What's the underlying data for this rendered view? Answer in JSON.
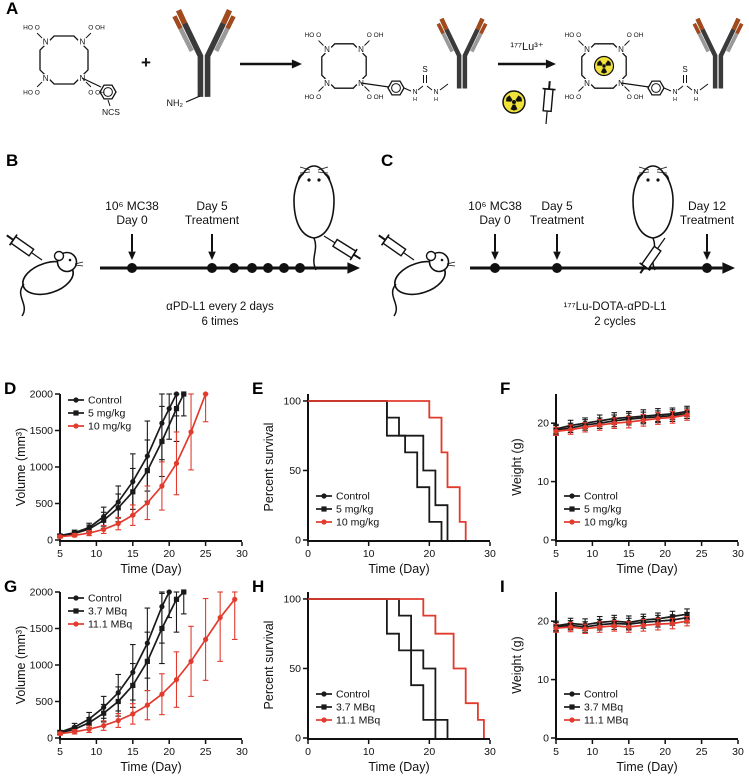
{
  "panels": {
    "A": "A",
    "B": "B",
    "C": "C",
    "D": "D",
    "E": "E",
    "F": "F",
    "G": "G",
    "H": "H",
    "I": "I"
  },
  "colors": {
    "black": "#1a1a1a",
    "red": "#e23b2e",
    "antibody_dark": "#3a3a3a",
    "antibody_tip": "#a04a1e",
    "antibody_light": "#9a9a9a",
    "radioactive_yellow": "#f0e13b"
  },
  "panelA": {
    "plus": "+",
    "nh2": "NH₂",
    "ncs": "NCS",
    "lu_label": "¹⁷⁷Lu³⁺",
    "n_label": "N",
    "arm_labels": [
      "O OH",
      "HO O",
      "HO O",
      "O OH"
    ],
    "linker": {
      "s": "S",
      "n1": "N",
      "n2": "N",
      "h": "H"
    }
  },
  "panelB": {
    "inoc_line1": "10⁶ MC38",
    "inoc_line2": "Day 0",
    "treat_line1": "Day 5",
    "treat_line2": "Treatment",
    "caption_line1": "αPD-L1 every 2 days",
    "caption_line2": "6 times"
  },
  "panelC": {
    "inoc_line1": "10⁶ MC38",
    "inoc_line2": "Day 0",
    "treat1_line1": "Day 5",
    "treat1_line2": "Treatment",
    "treat2_line1": "Day 12",
    "treat2_line2": "Treatment",
    "caption_line1": "¹⁷⁷Lu-DOTA-αPD-L1",
    "caption_line2": "2 cycles"
  },
  "chart_data": [
    {
      "panel": "D",
      "type": "line",
      "title": "",
      "xlabel": "Time (Day)",
      "ylabel": "Volume (mm³)",
      "xlim": [
        5,
        30
      ],
      "ylim": [
        0,
        2000
      ],
      "xticks": [
        5,
        10,
        15,
        20,
        25,
        30
      ],
      "yticks": [
        0,
        500,
        1000,
        1500,
        2000
      ],
      "legend_pos": "top-left",
      "series": [
        {
          "name": "Control",
          "color": "#1a1a1a",
          "marker": "circle",
          "x": [
            5,
            7,
            9,
            11,
            13,
            15,
            17,
            19,
            20,
            21
          ],
          "y": [
            60,
            100,
            170,
            320,
            520,
            800,
            1150,
            1600,
            1800,
            2000
          ],
          "err": [
            20,
            35,
            60,
            130,
            220,
            380,
            480,
            500,
            420,
            300
          ]
        },
        {
          "name": "5 mg/kg",
          "color": "#1a1a1a",
          "marker": "square",
          "x": [
            5,
            7,
            9,
            11,
            13,
            15,
            17,
            19,
            21,
            22
          ],
          "y": [
            55,
            90,
            150,
            270,
            440,
            660,
            950,
            1350,
            1800,
            2000
          ],
          "err": [
            18,
            30,
            55,
            110,
            190,
            320,
            420,
            480,
            450,
            300
          ]
        },
        {
          "name": "10 mg/kg",
          "color": "#e23b2e",
          "marker": "circle",
          "x": [
            5,
            7,
            9,
            11,
            13,
            15,
            17,
            19,
            21,
            23,
            25
          ],
          "y": [
            45,
            65,
            95,
            145,
            225,
            340,
            510,
            740,
            1050,
            1480,
            2000
          ],
          "err": [
            15,
            22,
            35,
            55,
            85,
            140,
            230,
            330,
            430,
            520,
            380
          ]
        }
      ]
    },
    {
      "panel": "E",
      "type": "step",
      "title": "",
      "xlabel": "Time (Day)",
      "ylabel": "Percent survival",
      "xlim": [
        0,
        30
      ],
      "ylim": [
        0,
        105
      ],
      "xticks": [
        0,
        10,
        20,
        30
      ],
      "yticks": [
        0,
        50,
        100
      ],
      "legend_pos": "bottom-left",
      "series": [
        {
          "name": "Control",
          "color": "#1a1a1a",
          "marker": "circle",
          "points": [
            [
              0,
              100
            ],
            [
              13,
              100
            ],
            [
              13,
              75
            ],
            [
              16,
              75
            ],
            [
              16,
              63
            ],
            [
              18,
              63
            ],
            [
              18,
              38
            ],
            [
              20,
              38
            ],
            [
              20,
              13
            ],
            [
              22,
              13
            ],
            [
              22,
              0
            ]
          ]
        },
        {
          "name": "5 mg/kg",
          "color": "#1a1a1a",
          "marker": "square",
          "points": [
            [
              0,
              100
            ],
            [
              13,
              100
            ],
            [
              13,
              88
            ],
            [
              15,
              88
            ],
            [
              15,
              75
            ],
            [
              19,
              75
            ],
            [
              19,
              50
            ],
            [
              21,
              50
            ],
            [
              21,
              25
            ],
            [
              23,
              25
            ],
            [
              23,
              0
            ]
          ]
        },
        {
          "name": "10 mg/kg",
          "color": "#e23b2e",
          "marker": "circle",
          "points": [
            [
              0,
              100
            ],
            [
              20,
              100
            ],
            [
              20,
              88
            ],
            [
              22,
              88
            ],
            [
              22,
              63
            ],
            [
              23,
              63
            ],
            [
              23,
              38
            ],
            [
              25,
              38
            ],
            [
              25,
              13
            ],
            [
              26,
              13
            ],
            [
              26,
              0
            ]
          ]
        }
      ]
    },
    {
      "panel": "F",
      "type": "line",
      "title": "",
      "xlabel": "Time (Day)",
      "ylabel": "Weight (g)",
      "xlim": [
        5,
        30
      ],
      "ylim": [
        0,
        25
      ],
      "xticks": [
        5,
        10,
        15,
        20,
        25,
        30
      ],
      "yticks": [
        0,
        10,
        20
      ],
      "legend_pos": "bottom-left",
      "series": [
        {
          "name": "Control",
          "color": "#1a1a1a",
          "marker": "circle",
          "x": [
            5,
            7,
            9,
            11,
            13,
            15,
            17,
            19,
            21,
            23
          ],
          "y": [
            19,
            19.6,
            20,
            20.4,
            20.8,
            21,
            21.2,
            21.4,
            21.6,
            22
          ],
          "err": [
            0.8,
            0.9,
            0.9,
            1,
            1,
            1,
            1.1,
            1.1,
            1,
            0.9
          ]
        },
        {
          "name": "5 mg/kg",
          "color": "#1a1a1a",
          "marker": "square",
          "x": [
            5,
            7,
            9,
            11,
            13,
            15,
            17,
            19,
            21,
            23
          ],
          "y": [
            18.8,
            19.2,
            19.7,
            20,
            20.4,
            20.7,
            20.9,
            21.1,
            21.3,
            21.7
          ],
          "err": [
            0.8,
            0.8,
            0.9,
            0.9,
            1,
            1,
            1,
            1,
            1,
            0.9
          ]
        },
        {
          "name": "10 mg/kg",
          "color": "#e23b2e",
          "marker": "circle",
          "x": [
            5,
            7,
            9,
            11,
            13,
            15,
            17,
            19,
            21,
            23
          ],
          "y": [
            18.6,
            18.9,
            19.3,
            19.7,
            20,
            20.2,
            20.5,
            20.8,
            21,
            21.4
          ],
          "err": [
            0.7,
            0.8,
            0.8,
            0.9,
            0.9,
            1,
            1,
            1,
            1,
            0.9
          ]
        }
      ]
    },
    {
      "panel": "G",
      "type": "line",
      "title": "",
      "xlabel": "Time (Day)",
      "ylabel": "Volume (mm³)",
      "xlim": [
        5,
        30
      ],
      "ylim": [
        0,
        2000
      ],
      "xticks": [
        5,
        10,
        15,
        20,
        25,
        30
      ],
      "yticks": [
        0,
        500,
        1000,
        1500,
        2000
      ],
      "legend_pos": "top-left",
      "series": [
        {
          "name": "Control",
          "color": "#1a1a1a",
          "marker": "circle",
          "x": [
            5,
            7,
            9,
            11,
            13,
            15,
            17,
            19,
            20
          ],
          "y": [
            80,
            150,
            260,
            420,
            620,
            900,
            1300,
            1800,
            2000
          ],
          "err": [
            25,
            50,
            90,
            150,
            250,
            380,
            480,
            500,
            350
          ]
        },
        {
          "name": "3.7 MBq",
          "color": "#1a1a1a",
          "marker": "square",
          "x": [
            5,
            7,
            9,
            11,
            13,
            15,
            17,
            19,
            21,
            22
          ],
          "y": [
            70,
            120,
            210,
            340,
            500,
            720,
            1050,
            1500,
            1900,
            2000
          ],
          "err": [
            22,
            40,
            70,
            120,
            200,
            300,
            400,
            480,
            450,
            300
          ]
        },
        {
          "name": "11.1 MBq",
          "color": "#e23b2e",
          "marker": "circle",
          "x": [
            5,
            7,
            9,
            11,
            13,
            15,
            17,
            19,
            21,
            23,
            25,
            27,
            29
          ],
          "y": [
            60,
            85,
            120,
            170,
            240,
            330,
            450,
            600,
            800,
            1050,
            1350,
            1650,
            1900
          ],
          "err": [
            20,
            30,
            45,
            65,
            95,
            140,
            200,
            280,
            380,
            480,
            560,
            600,
            550
          ]
        }
      ]
    },
    {
      "panel": "H",
      "type": "step",
      "title": "",
      "xlabel": "Time (Day)",
      "ylabel": "Percent survival",
      "xlim": [
        0,
        30
      ],
      "ylim": [
        0,
        105
      ],
      "xticks": [
        0,
        10,
        20,
        30
      ],
      "yticks": [
        0,
        50,
        100
      ],
      "legend_pos": "bottom-left",
      "series": [
        {
          "name": "Control",
          "color": "#1a1a1a",
          "marker": "circle",
          "points": [
            [
              0,
              100
            ],
            [
              13,
              100
            ],
            [
              13,
              75
            ],
            [
              15,
              75
            ],
            [
              15,
              63
            ],
            [
              17,
              63
            ],
            [
              17,
              38
            ],
            [
              19,
              38
            ],
            [
              19,
              13
            ],
            [
              21,
              13
            ],
            [
              21,
              0
            ]
          ]
        },
        {
          "name": "3.7 MBq",
          "color": "#1a1a1a",
          "marker": "square",
          "points": [
            [
              0,
              100
            ],
            [
              15,
              100
            ],
            [
              15,
              88
            ],
            [
              17,
              88
            ],
            [
              17,
              63
            ],
            [
              19,
              63
            ],
            [
              19,
              50
            ],
            [
              21,
              50
            ],
            [
              21,
              13
            ],
            [
              23,
              13
            ],
            [
              23,
              0
            ]
          ]
        },
        {
          "name": "11.1 MBq",
          "color": "#e23b2e",
          "marker": "circle",
          "points": [
            [
              0,
              100
            ],
            [
              19,
              100
            ],
            [
              19,
              88
            ],
            [
              21,
              88
            ],
            [
              21,
              75
            ],
            [
              24,
              75
            ],
            [
              24,
              50
            ],
            [
              26,
              50
            ],
            [
              26,
              25
            ],
            [
              28,
              25
            ],
            [
              28,
              13
            ],
            [
              29,
              13
            ],
            [
              29,
              0
            ]
          ]
        }
      ]
    },
    {
      "panel": "I",
      "type": "line",
      "title": "",
      "xlabel": "Time (Day)",
      "ylabel": "Weight (g)",
      "xlim": [
        5,
        30
      ],
      "ylim": [
        0,
        25
      ],
      "xticks": [
        5,
        10,
        15,
        20,
        25,
        30
      ],
      "yticks": [
        0,
        10,
        20
      ],
      "legend_pos": "bottom-left",
      "series": [
        {
          "name": "Control",
          "color": "#1a1a1a",
          "marker": "circle",
          "x": [
            5,
            7,
            9,
            11,
            13,
            15,
            17,
            19,
            21,
            23
          ],
          "y": [
            19.2,
            19.6,
            19.4,
            19.8,
            20,
            19.8,
            20.2,
            20.4,
            20.8,
            21.2
          ],
          "err": [
            0.8,
            0.9,
            1,
            1,
            1,
            1.1,
            1,
            1,
            0.9,
            0.9
          ]
        },
        {
          "name": "3.7 MBq",
          "color": "#1a1a1a",
          "marker": "square",
          "x": [
            5,
            7,
            9,
            11,
            13,
            15,
            17,
            19,
            21,
            23
          ],
          "y": [
            19,
            19.3,
            19,
            19.4,
            19.6,
            19.5,
            19.8,
            20,
            20.2,
            20.6
          ],
          "err": [
            0.8,
            0.8,
            0.9,
            0.9,
            1,
            1,
            1,
            1,
            0.9,
            0.9
          ]
        },
        {
          "name": "11.1 MBq",
          "color": "#e23b2e",
          "marker": "circle",
          "x": [
            5,
            7,
            9,
            11,
            13,
            15,
            17,
            19,
            21,
            23
          ],
          "y": [
            18.8,
            19,
            18.7,
            19,
            19.2,
            19,
            19.3,
            19.5,
            19.6,
            20
          ],
          "err": [
            0.7,
            0.8,
            0.8,
            0.9,
            0.9,
            0.9,
            1,
            1,
            0.9,
            0.8
          ]
        }
      ]
    }
  ]
}
